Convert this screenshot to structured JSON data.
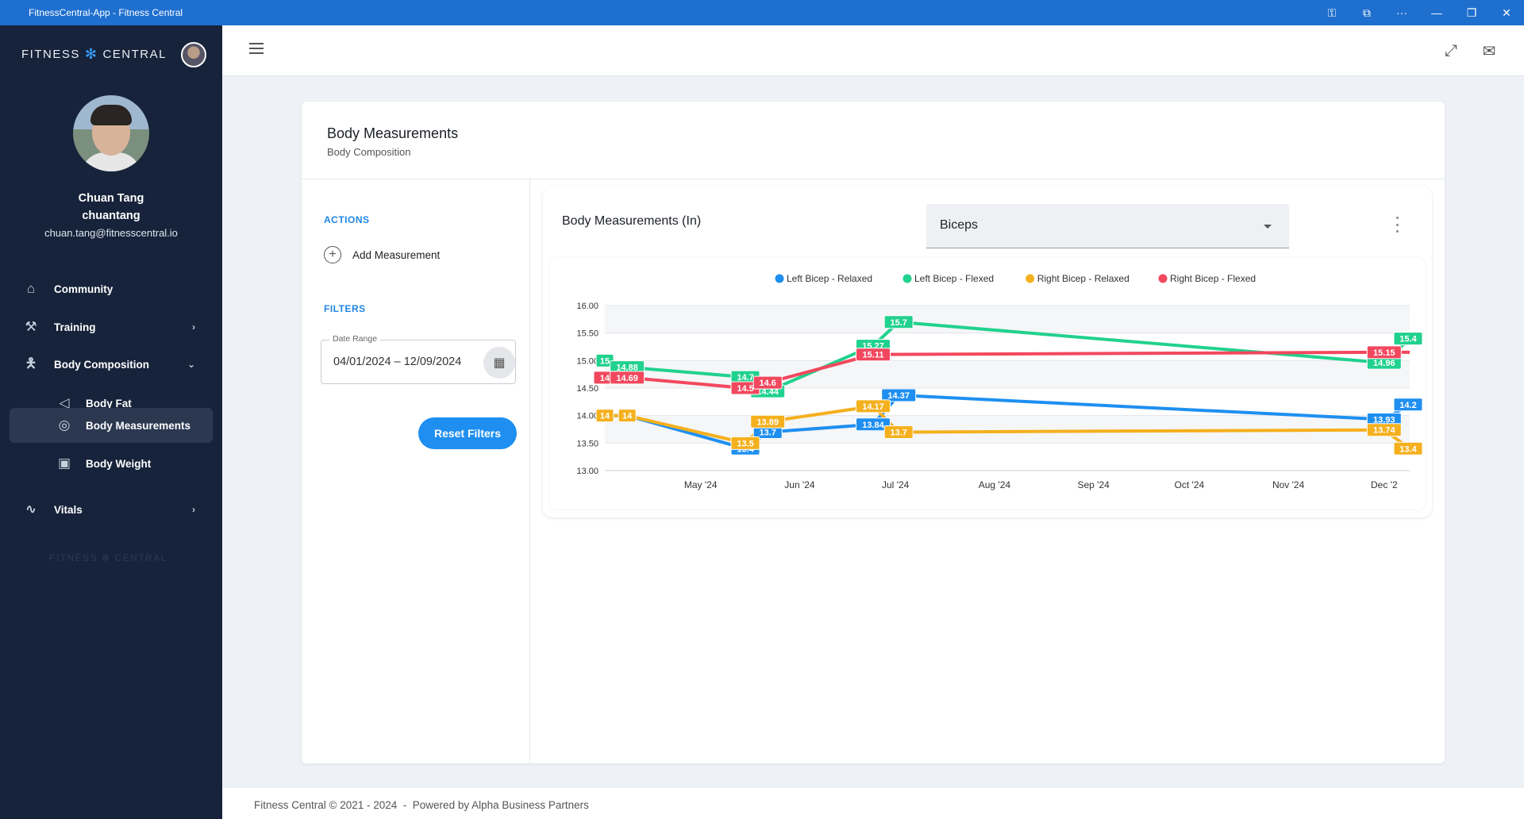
{
  "window": {
    "title": "FitnessCentral-App - Fitness Central",
    "icons": [
      "key-icon",
      "cast-icon",
      "more-icon",
      "minimize-icon",
      "restore-icon",
      "close-icon"
    ]
  },
  "sidebar": {
    "brand_left": "FITNESS",
    "brand_right": "CENTRAL",
    "user_name": "Chuan Tang",
    "user_handle": "chuantang",
    "user_email": "chuan.tang@fitnesscentral.io",
    "items": [
      {
        "label": "Community",
        "icon": "home-icon"
      },
      {
        "label": "Training",
        "icon": "dumbbell-icon"
      },
      {
        "label": "Body Composition",
        "icon": "person-icon"
      },
      {
        "label": "Body Fat",
        "icon": "body-fat-icon"
      },
      {
        "label": "Body Measurements",
        "icon": "tape-measure-icon"
      },
      {
        "label": "Body Weight",
        "icon": "scale-icon"
      },
      {
        "label": "Vitals",
        "icon": "pulse-icon"
      }
    ],
    "watermark_left": "FITNESS",
    "watermark_right": "CENTRAL"
  },
  "page": {
    "title": "Body Measurements",
    "subtitle": "Body Composition"
  },
  "actions": {
    "heading": "ACTIONS",
    "add_label": "Add Measurement"
  },
  "filters": {
    "heading": "FILTERS",
    "date_label": "Date Range",
    "date_value": "04/01/2024 – 12/09/2024",
    "reset_label": "Reset Filters"
  },
  "chart_panel": {
    "title": "Body Measurements (In)",
    "selected_measure": "Biceps"
  },
  "chart_data": {
    "type": "line",
    "title": "",
    "xlabel": "",
    "ylabel": "",
    "ylim": [
      13.0,
      16.0
    ],
    "yticks": [
      "16.00",
      "15.50",
      "15.00",
      "14.50",
      "14.00",
      "13.50",
      "13.00"
    ],
    "x_ticks": [
      "May '24",
      "Jun '24",
      "Jul '24",
      "Aug '24",
      "Sep '24",
      "Oct '24",
      "Nov '24",
      "Dec '2"
    ],
    "legend_position": "top-center",
    "grid": true,
    "series": [
      {
        "name": "Left Bicep - Relaxed",
        "color": "#1e8ff0",
        "points": [
          [
            "2024-04-01",
            14.0
          ],
          [
            "2024-04-08",
            14.0
          ],
          [
            "2024-05-15",
            13.4
          ],
          [
            "2024-05-22",
            13.7
          ],
          [
            "2024-06-24",
            13.84
          ],
          [
            "2024-07-02",
            14.37
          ],
          [
            "2024-12-01",
            13.93
          ],
          [
            "2024-12-09",
            14.2
          ]
        ],
        "labels": [
          "",
          "",
          "13.4",
          "13.7",
          "13.84",
          "14.37",
          "13.93",
          "14.2"
        ]
      },
      {
        "name": "Left Bicep - Flexed",
        "color": "#21d18e",
        "points": [
          [
            "2024-04-01",
            15.0
          ],
          [
            "2024-04-08",
            14.88
          ],
          [
            "2024-05-15",
            14.7
          ],
          [
            "2024-05-22",
            14.44
          ],
          [
            "2024-06-24",
            15.27
          ],
          [
            "2024-07-02",
            15.7
          ],
          [
            "2024-12-01",
            14.96
          ],
          [
            "2024-12-09",
            15.4
          ]
        ],
        "labels": [
          "15",
          "14.88",
          "14.7",
          "14.44",
          "15.27",
          "15.7",
          "14.96",
          "15.4"
        ]
      },
      {
        "name": "Right Bicep - Relaxed",
        "color": "#f5b01e",
        "points": [
          [
            "2024-04-01",
            14.0
          ],
          [
            "2024-04-08",
            14.0
          ],
          [
            "2024-05-15",
            13.5
          ],
          [
            "2024-05-22",
            13.89
          ],
          [
            "2024-06-24",
            14.17
          ],
          [
            "2024-07-02",
            13.7
          ],
          [
            "2024-12-01",
            13.74
          ],
          [
            "2024-12-09",
            13.4
          ]
        ],
        "labels": [
          "14",
          "14",
          "13.5",
          "13.89",
          "14.17",
          "13.7",
          "13.74",
          "13.4"
        ]
      },
      {
        "name": "Right Bicep - Flexed",
        "color": "#f2485e",
        "points": [
          [
            "2024-04-01",
            14.69
          ],
          [
            "2024-04-08",
            14.69
          ],
          [
            "2024-05-15",
            14.5
          ],
          [
            "2024-05-22",
            14.6
          ],
          [
            "2024-06-24",
            15.11
          ],
          [
            "2024-12-01",
            15.15
          ],
          [
            "2024-12-09",
            15.15
          ]
        ],
        "labels": [
          "14.69",
          "14.69",
          "14.5",
          "14.6",
          "15.11",
          "15.15",
          ""
        ]
      }
    ]
  },
  "footer": {
    "text": "Fitness Central © 2021 - 2024  -  Powered by Alpha Business Partners"
  }
}
